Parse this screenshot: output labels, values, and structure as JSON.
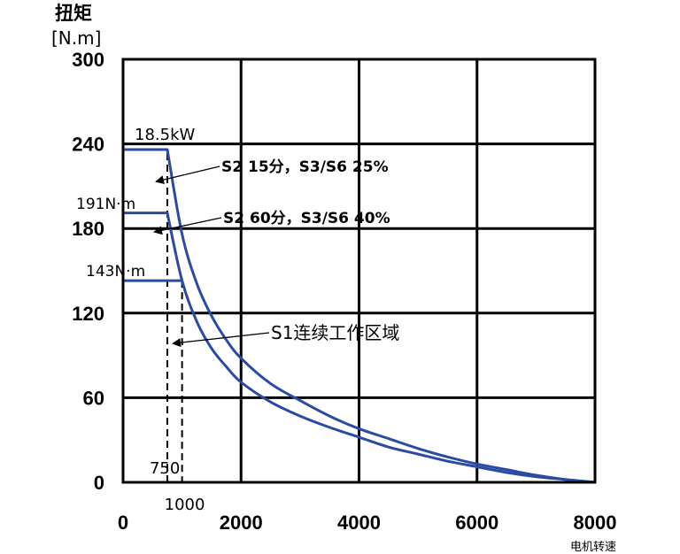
{
  "chart_data": {
    "type": "line",
    "title": "",
    "ylabel": "扭矩",
    "yunit": "[N.m]",
    "xlabel": "电机转速",
    "xlim": [
      0,
      8000
    ],
    "ylim": [
      0,
      300
    ],
    "xticks": [
      0,
      2000,
      4000,
      6000,
      8000
    ],
    "yticks": [
      0,
      60,
      120,
      180,
      240,
      300
    ],
    "grid": true,
    "colors": {
      "curve": "#2a4aa3",
      "grid": "#000000",
      "marker": "#000000"
    },
    "series": [
      {
        "name": "S2 15分，S3/S6 25%",
        "x": [
          0,
          750,
          1000,
          1250,
          1500,
          1750,
          2000,
          2500,
          3000,
          3500,
          4000,
          4500,
          5000,
          5500,
          6000,
          6500,
          7000,
          7500,
          8000
        ],
        "y": [
          236,
          236,
          176,
          141,
          118,
          101,
          88,
          70,
          58,
          47,
          38,
          31,
          24,
          18,
          13,
          9,
          5,
          2,
          0
        ]
      },
      {
        "name": "S2 60分，S3/S6 40%",
        "x": [
          0,
          750,
          1000,
          1250,
          1500,
          1750,
          2000,
          2500,
          3000,
          3500,
          4000,
          4500,
          5000,
          5500,
          6000,
          6500,
          7000,
          7500,
          8000
        ],
        "y": [
          191,
          191,
          143,
          114,
          95,
          82,
          71,
          57,
          47,
          39,
          32,
          25,
          20,
          15,
          11,
          7,
          4,
          2,
          0
        ]
      },
      {
        "name": "S1连续工作区域",
        "x": [
          0,
          1000
        ],
        "y": [
          143,
          143
        ]
      }
    ],
    "reference_lines": [
      {
        "x": 750,
        "label": "750"
      },
      {
        "x": 1000,
        "label": "1000"
      }
    ],
    "annotations": {
      "power": "18.5kW",
      "torque_191": "191N·m",
      "torque_143": "143N·m",
      "s2_15": "S2 15分，S3/S6 25%",
      "s2_60": "S2 60分，S3/S6 40%",
      "s1": "S1连续工作区域"
    }
  }
}
